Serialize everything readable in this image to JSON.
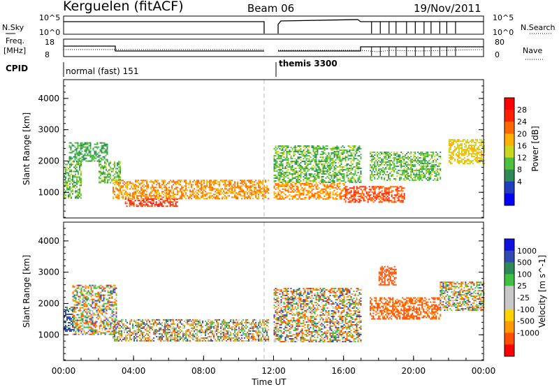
{
  "header": {
    "station": "Kerguelen (fitACF)",
    "beam": "Beam 06",
    "date": "19/Nov/2011"
  },
  "status_panels": {
    "nsky_label": "N.Sky",
    "nsearch_label": "N.Search",
    "noise_ticks": [
      "10^5",
      "10^0"
    ],
    "freq_label": "Freq.",
    "freq_unit": "[MHz]",
    "freq_ticks": [
      "18",
      "8"
    ],
    "nave_label": "Nave",
    "nave_ticks": [
      "80",
      "0"
    ],
    "cpid_label": "CPID",
    "cpid_segments": [
      {
        "label": "normal (fast) 151",
        "start_hour": 0.0,
        "end_hour": 11.7
      },
      {
        "label": "themis 3300",
        "start_hour": 12.0,
        "end_hour": 24.0
      }
    ]
  },
  "colors": {
    "power_scale": [
      "#0000ff",
      "#1f3fbf",
      "#2e8b57",
      "#4fbf3f",
      "#c8d820",
      "#ffb000",
      "#ff6a00",
      "#ff2000",
      "#ff0000"
    ],
    "velocity_scale": [
      "#ff0000",
      "#ff5000",
      "#ff9a00",
      "#ffd200",
      "#c8c8c8",
      "#c8c8c8",
      "#40c040",
      "#2e8b57",
      "#2d4bb0",
      "#1010e0"
    ],
    "ground_scatter": "#c8c8c8"
  },
  "chart_data": [
    {
      "type": "heatmap",
      "parameter": "Power",
      "ylabel": "Slant Range [km]",
      "ylim": [
        180,
        4600
      ],
      "yticks": [
        "1000",
        "2000",
        "3000",
        "4000"
      ],
      "xlim_hours": [
        0,
        24
      ],
      "colorbar": {
        "label": "Power [dB]",
        "ticks": [
          "4",
          "8",
          "12",
          "16",
          "20",
          "24",
          "28"
        ],
        "range": [
          0,
          32
        ]
      },
      "data_gap_hours": [
        11.7,
        12.0
      ],
      "regions": [
        {
          "t": [
            0.0,
            1.0
          ],
          "r": [
            800,
            2000
          ],
          "level": 12
        },
        {
          "t": [
            0.3,
            2.5
          ],
          "r": [
            2000,
            2600
          ],
          "level": 10
        },
        {
          "t": [
            2.0,
            3.2
          ],
          "r": [
            1300,
            2000
          ],
          "level": 12
        },
        {
          "t": [
            2.8,
            11.7
          ],
          "r": [
            800,
            1400
          ],
          "level": 22
        },
        {
          "t": [
            3.5,
            6.5
          ],
          "r": [
            550,
            800
          ],
          "level": 28
        },
        {
          "t": [
            12.0,
            16.0
          ],
          "r": [
            800,
            1300
          ],
          "level": 22
        },
        {
          "t": [
            12.0,
            17.0
          ],
          "r": [
            1300,
            2500
          ],
          "level": 12
        },
        {
          "t": [
            16.0,
            19.5
          ],
          "r": [
            700,
            1200
          ],
          "level": 26
        },
        {
          "t": [
            17.5,
            21.5
          ],
          "r": [
            1400,
            2300
          ],
          "level": 12
        },
        {
          "t": [
            22.0,
            24.0
          ],
          "r": [
            1900,
            2700
          ],
          "level": 18
        }
      ]
    },
    {
      "type": "heatmap",
      "parameter": "Velocity",
      "ylabel": "Slant Range [km]",
      "ylim": [
        180,
        4600
      ],
      "yticks": [
        "1000",
        "2000",
        "3000",
        "4000"
      ],
      "xlim_hours": [
        0,
        24
      ],
      "xticks": [
        "00:00",
        "04:00",
        "08:00",
        "12:00",
        "16:00",
        "20:00",
        "00:00"
      ],
      "xlabel": "Time UT",
      "colorbar": {
        "label": "Velocity [m s^-1]",
        "ticks": [
          "1000",
          "500",
          "100",
          "25",
          "-25",
          "-100",
          "-500",
          "-1000"
        ]
      },
      "data_gap_hours": [
        11.7,
        12.0
      ],
      "regions": [
        {
          "t": [
            0.0,
            0.6
          ],
          "r": [
            1100,
            1900
          ],
          "velocity": 200
        },
        {
          "t": [
            0.5,
            3.0
          ],
          "r": [
            1000,
            2600
          ],
          "velocity": 0
        },
        {
          "t": [
            2.8,
            11.7
          ],
          "r": [
            800,
            1500
          ],
          "velocity": 0
        },
        {
          "t": [
            12.0,
            17.0
          ],
          "r": [
            800,
            2500
          ],
          "velocity": 0
        },
        {
          "t": [
            17.5,
            21.5
          ],
          "r": [
            1500,
            2200
          ],
          "velocity": -200
        },
        {
          "t": [
            18.0,
            19.0
          ],
          "r": [
            2600,
            3200
          ],
          "velocity": -300
        },
        {
          "t": [
            21.5,
            24.0
          ],
          "r": [
            1800,
            2700
          ],
          "velocity": 0
        }
      ]
    }
  ]
}
